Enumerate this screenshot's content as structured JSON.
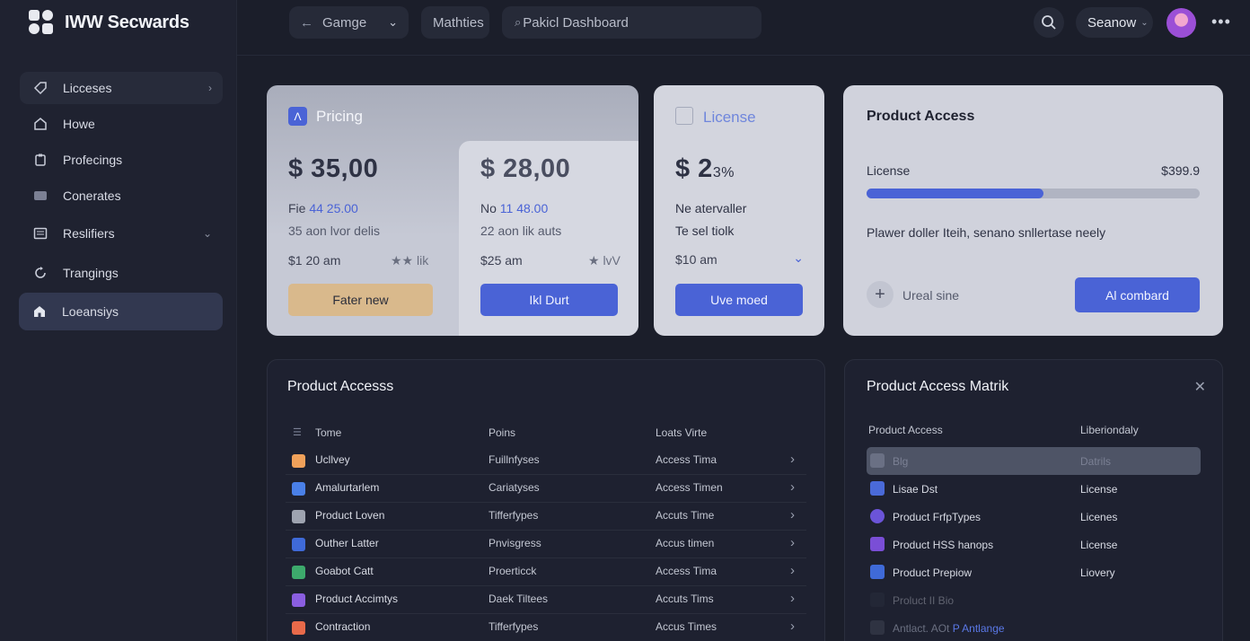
{
  "app": {
    "name": "IWW Secwards"
  },
  "sidebar": {
    "items": [
      {
        "label": "Licceses",
        "icon": "tag-icon"
      },
      {
        "label": "Howe",
        "icon": "home-icon"
      },
      {
        "label": "Profecings",
        "icon": "clipboard-icon"
      },
      {
        "label": "Conerates",
        "icon": "stack-icon"
      },
      {
        "label": "Reslifiers",
        "icon": "grid-icon"
      },
      {
        "label": "Trangings",
        "icon": "refresh-icon"
      },
      {
        "label": "Loeansiys",
        "icon": "building-icon"
      }
    ]
  },
  "topbar": {
    "game_label": "Gamge",
    "matrics_label": "Mathties",
    "search_text": "Pakicl Dashboard",
    "user_label": "Seanow"
  },
  "pricing": {
    "title": "Pricing",
    "plan_a": {
      "price": "$ 35,00",
      "fee_prefix": "Fie ",
      "fee_value": "44 25.00",
      "desc": "35 aon lvor delis",
      "rate": "$1 20 am",
      "rate_right": "★★ lik",
      "button": "Fater new"
    },
    "plan_b": {
      "price": "$ 28,00",
      "fee_prefix": "No ",
      "fee_value": "11 48.00",
      "desc": "22 aon lik auts",
      "rate": "$25 am",
      "rate_right": "★ lvV",
      "button": "Ikl Durt"
    }
  },
  "license": {
    "title": "License",
    "price_main": "$ 2",
    "price_small": "3%",
    "line1": "Ne atervaller",
    "line2": "Te sel tiolk",
    "select_value": "$10 am",
    "button": "Uve moed"
  },
  "product_access_card": {
    "title": "Product Access",
    "license_label": "License",
    "license_value": "$399.9",
    "progress": 0.53,
    "description": "Plawer doller Iteih, senano snllertase neely",
    "add_label": "Ureal sine",
    "button": "Al combard"
  },
  "product_table": {
    "title": "Product Accesss",
    "columns": [
      "Tome",
      "Poins",
      "Loats Virte"
    ],
    "rows": [
      {
        "name": "Ucllvey",
        "points": "Fuillnfyses",
        "time": "Access Tima",
        "color": "#f0a15a"
      },
      {
        "name": "Amalurtarlem",
        "points": "Cariatyses",
        "time": "Access Timen",
        "color": "#4a80e8"
      },
      {
        "name": "Product Loven",
        "points": "Tifferfypes",
        "time": "Accuts Time",
        "color": "#9ea3b0"
      },
      {
        "name": "Outher Latter",
        "points": "Pnvisgress",
        "time": "Accus timen",
        "color": "#3f6ad8"
      },
      {
        "name": "Goabot Catt",
        "points": "Proerticck",
        "time": "Access Tima",
        "color": "#3daa6c"
      },
      {
        "name": "Product Accimtys",
        "points": "Daek Tiltees",
        "time": "Accuts Tims",
        "color": "#8a5ee0"
      },
      {
        "name": "Contraction",
        "points": "Tifferfypes",
        "time": "Accus Times",
        "color": "#e86a4a"
      }
    ]
  },
  "matrix": {
    "title": "Product Access Matrik",
    "col1": "Product Access",
    "col2": "Liberiondaly",
    "rows": [
      {
        "name": "Blg",
        "value": "Datrils",
        "color": "#6a7084",
        "selected": true
      },
      {
        "name": "Lisae Dst",
        "value": "License",
        "color": "#4a6ad8"
      },
      {
        "name": "Product FrfpTypes",
        "value": "Licenes",
        "color": "#6b54d8"
      },
      {
        "name": "Product HSS hanops",
        "value": "License",
        "color": "#7a4ed6"
      },
      {
        "name": "Product Prepiow",
        "value": "Liovery",
        "color": "#3f6ad8"
      },
      {
        "name": "Proluct II Bio",
        "value": "",
        "color": "#2f3342",
        "faded": true
      },
      {
        "name": "Antlact. AOt ",
        "name_link": "P Antlange",
        "value": "",
        "color": "#2f3342"
      }
    ]
  }
}
